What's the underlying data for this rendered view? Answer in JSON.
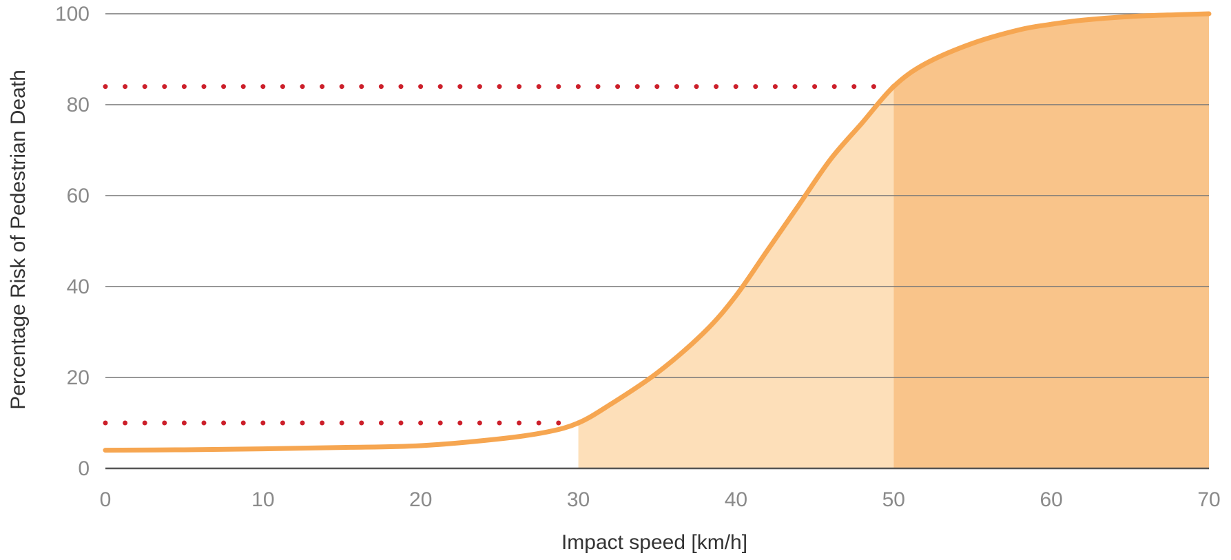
{
  "chart_data": {
    "type": "area",
    "title": "",
    "xlabel": "Impact speed [km/h]",
    "ylabel": "Percentage Risk of Pedestrian Death",
    "xlim": [
      0,
      70
    ],
    "ylim": [
      0,
      100
    ],
    "x_ticks": [
      "0",
      "10",
      "20",
      "30",
      "40",
      "50",
      "60",
      "70"
    ],
    "y_ticks": [
      "0",
      "20",
      "40",
      "60",
      "80",
      "100"
    ],
    "grid": "horizontal",
    "series": [
      {
        "x": [
          0,
          5,
          10,
          15,
          20,
          25,
          28,
          30,
          32,
          35,
          38,
          40,
          42,
          44,
          46,
          48,
          50,
          52,
          55,
          58,
          60,
          62,
          65,
          68,
          70
        ],
        "y": [
          4,
          4.1,
          4.3,
          4.6,
          5,
          6.5,
          8,
          10,
          14,
          21,
          30,
          38,
          48,
          58,
          68,
          76,
          84,
          89,
          93.5,
          96.5,
          97.7,
          98.6,
          99.4,
          99.8,
          100
        ]
      }
    ],
    "shaded_regions": [
      {
        "x_from": 30,
        "x_to": 50,
        "color": "#fddfb9"
      },
      {
        "x_from": 50,
        "x_to": 70,
        "color": "#f9c48a"
      }
    ],
    "reference_lines": [
      {
        "y": 10,
        "x_from": 0,
        "x_to": 30,
        "style": "dotted",
        "color": "#cc1f2a"
      },
      {
        "y": 84,
        "x_from": 0,
        "x_to": 50,
        "style": "dotted",
        "color": "#cc1f2a"
      }
    ],
    "colors": {
      "curve": "#f6a651",
      "grid": "#777777",
      "axis": "#555555"
    }
  }
}
